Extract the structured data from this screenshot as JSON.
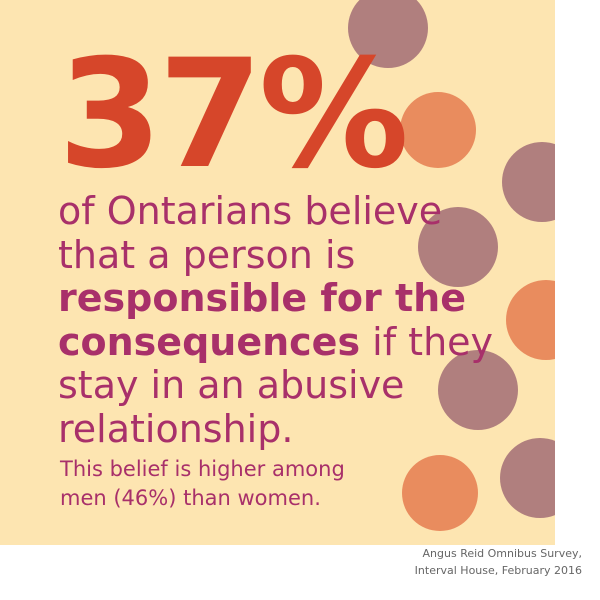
{
  "headline": "37%",
  "statement": {
    "lines": [
      [
        {
          "text": "of Ontarians believe",
          "bold": false
        }
      ],
      [
        {
          "text": "that a person is",
          "bold": false
        }
      ],
      [
        {
          "text": "responsible for the",
          "bold": true
        }
      ],
      [
        {
          "text": "consequences",
          "bold": true
        },
        {
          "text": " if they",
          "bold": false
        }
      ],
      [
        {
          "text": "stay in an abusive",
          "bold": false
        }
      ],
      [
        {
          "text": "relationship.",
          "bold": false
        }
      ]
    ]
  },
  "note": {
    "lines": [
      "This belief is higher among",
      "men (46%) than women."
    ]
  },
  "source": {
    "lines": [
      "Angus Reid Omnibus Survey,",
      "Interval House, February 2016"
    ]
  }
}
